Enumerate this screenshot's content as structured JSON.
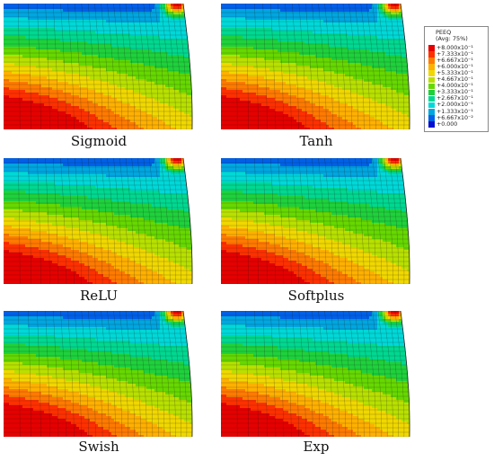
{
  "panels": [
    {
      "caption": "Sigmoid"
    },
    {
      "caption": "Tanh"
    },
    {
      "caption": "ReLU"
    },
    {
      "caption": "Softplus"
    },
    {
      "caption": "Swish"
    },
    {
      "caption": "Exp"
    }
  ],
  "legend": {
    "title": "PEEQ",
    "subtitle": "(Avg: 75%)",
    "entries": [
      {
        "label": "+8.000x10⁻¹",
        "color": "#e60000"
      },
      {
        "label": "+7.333x10⁻¹",
        "color": "#ff3000"
      },
      {
        "label": "+6.667x10⁻¹",
        "color": "#ff7a00"
      },
      {
        "label": "+6.000x10⁻¹",
        "color": "#ffb000"
      },
      {
        "label": "+5.333x10⁻¹",
        "color": "#f0d800"
      },
      {
        "label": "+4.667x10⁻¹",
        "color": "#b8e000"
      },
      {
        "label": "+4.000x10⁻¹",
        "color": "#66d800"
      },
      {
        "label": "+3.333x10⁻¹",
        "color": "#1ed13c"
      },
      {
        "label": "+2.667x10⁻¹",
        "color": "#00d890"
      },
      {
        "label": "+2.000x10⁻¹",
        "color": "#00d8d8"
      },
      {
        "label": "+1.333x10⁻¹",
        "color": "#00a6e0"
      },
      {
        "label": "+6.667x10⁻²",
        "color": "#0060e8"
      },
      {
        "label": "+0.000",
        "color": "#0010d0"
      }
    ]
  }
}
